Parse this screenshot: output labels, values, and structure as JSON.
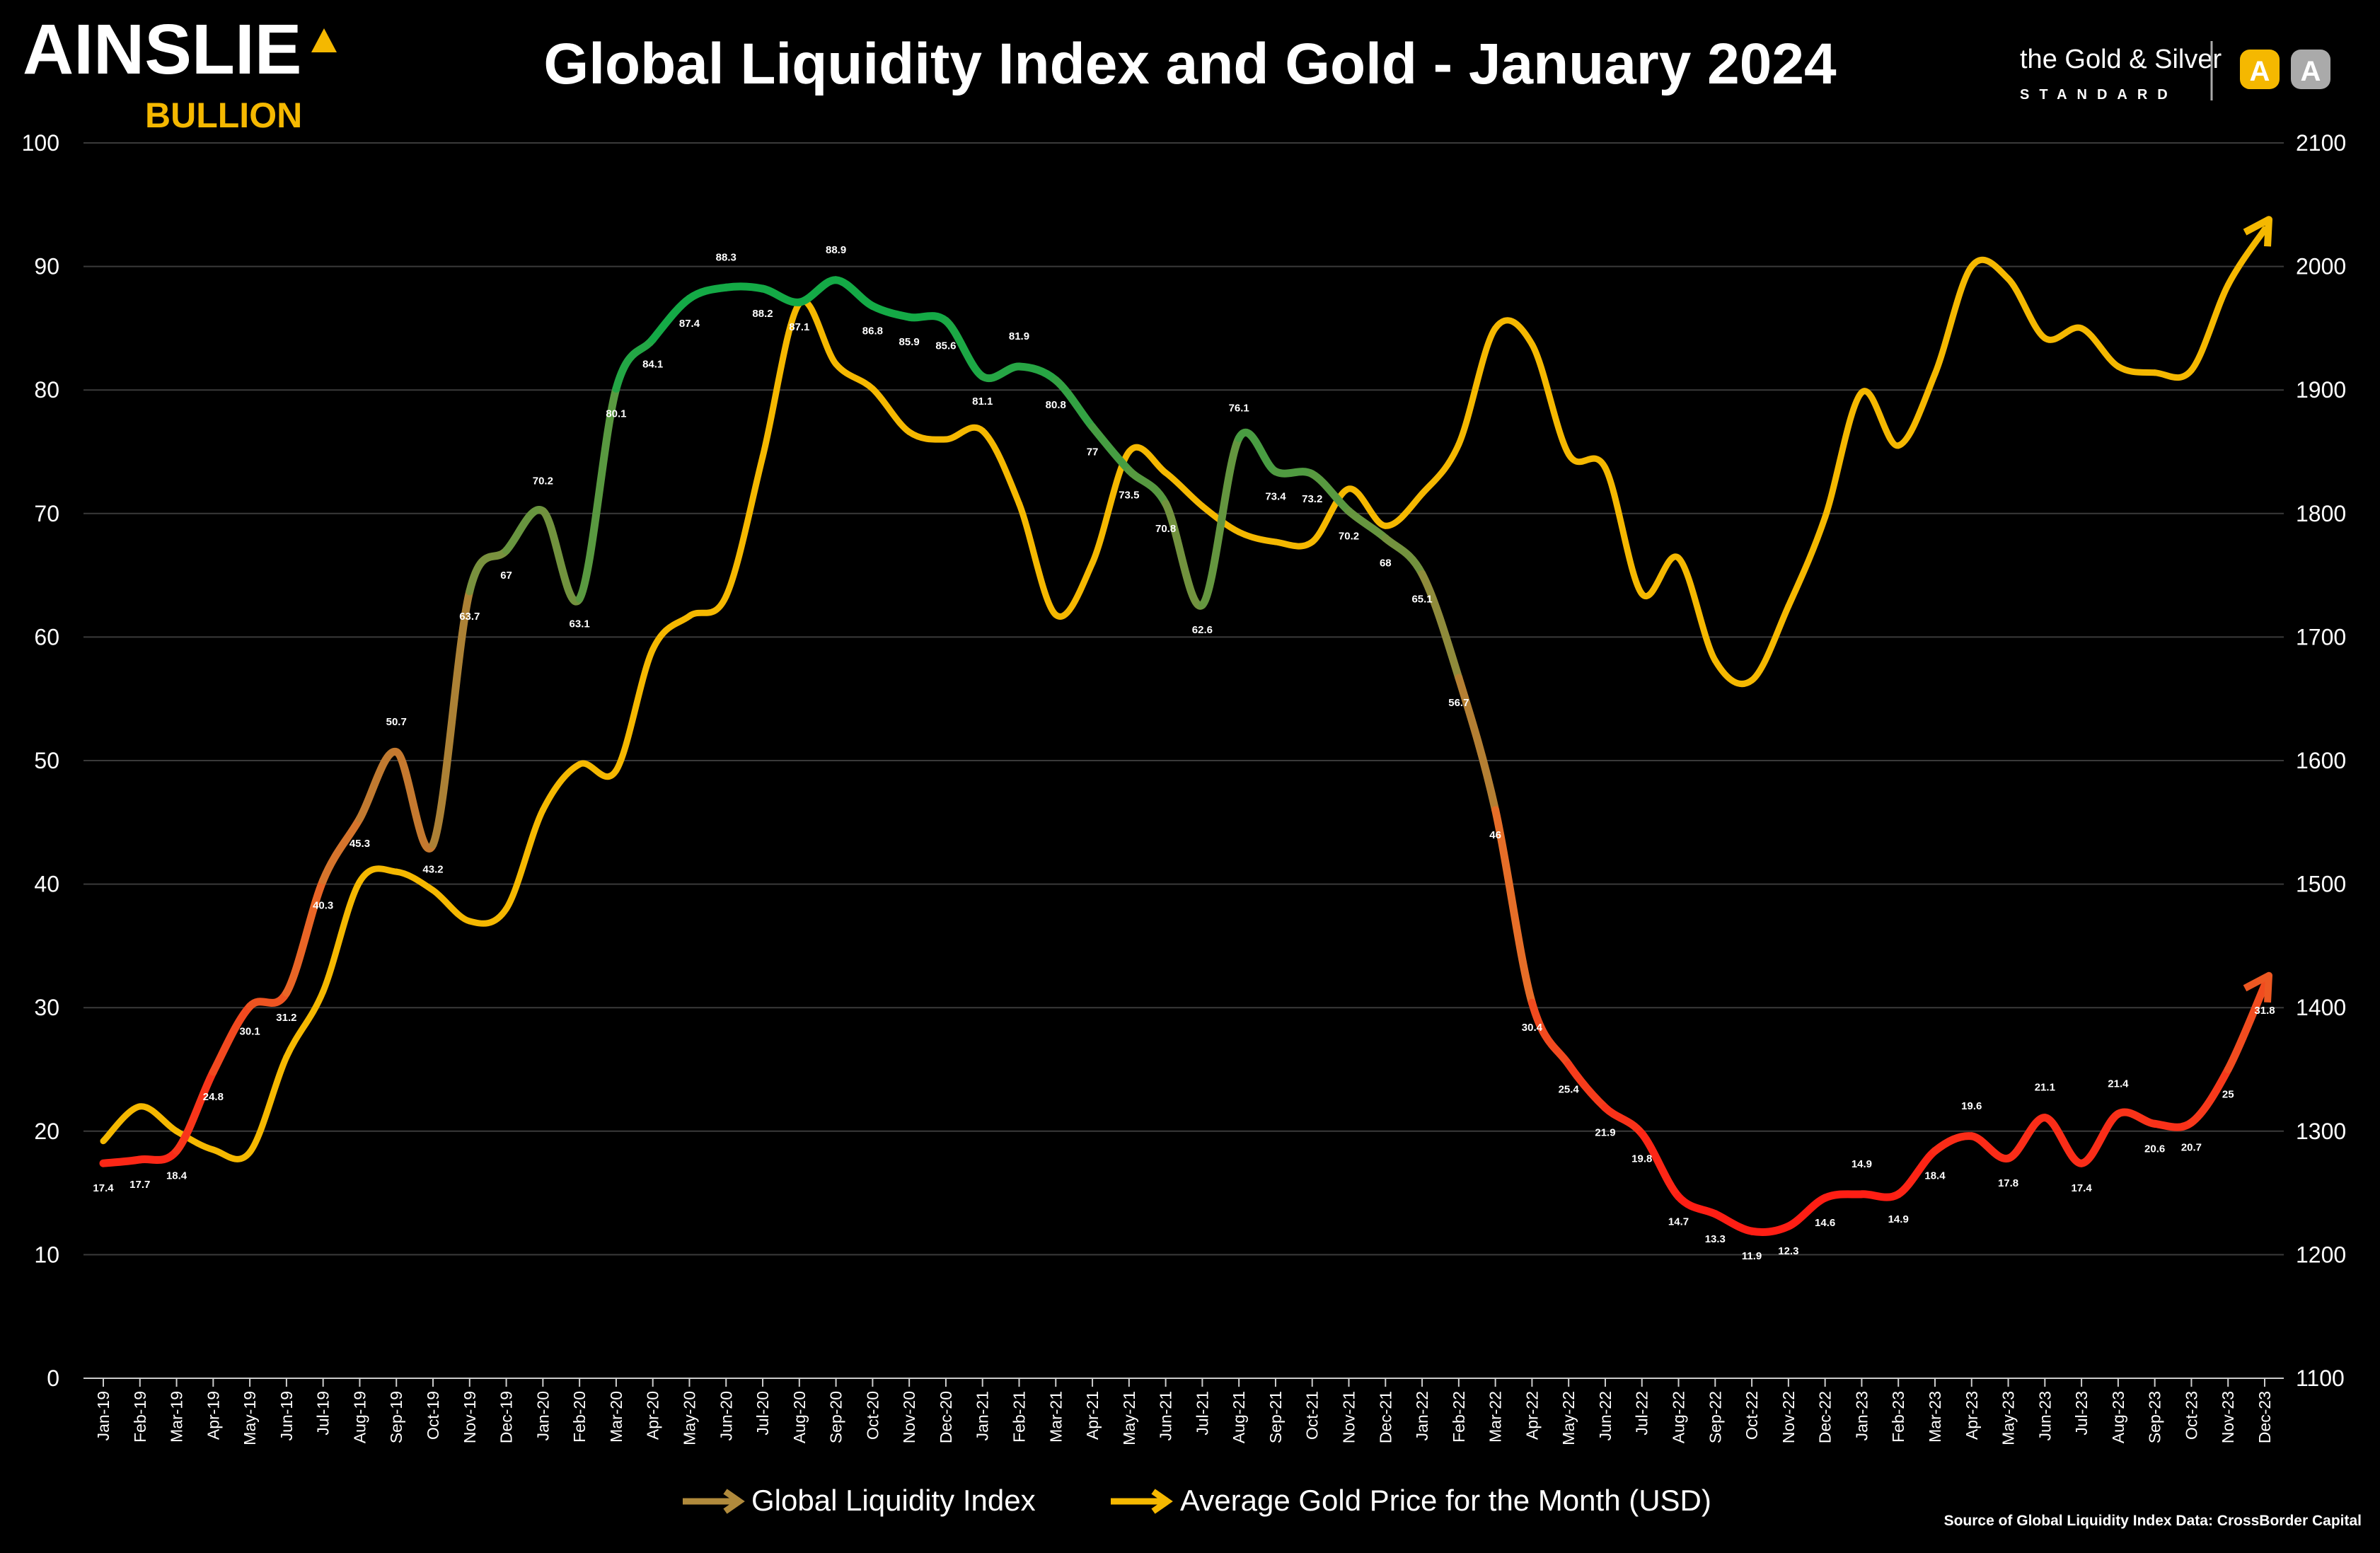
{
  "header": {
    "brand_main": "AINSLIE",
    "brand_sub": "BULLION",
    "partner_line1": "the Gold & Silver",
    "partner_line2": "STANDARD",
    "au_badge": "A",
    "ag_badge": "A"
  },
  "chart_data": {
    "type": "line",
    "title": "Global Liquidity Index and Gold - January 2024",
    "x": [
      "Jan-19",
      "Feb-19",
      "Mar-19",
      "Apr-19",
      "May-19",
      "Jun-19",
      "Jul-19",
      "Aug-19",
      "Sep-19",
      "Oct-19",
      "Nov-19",
      "Dec-19",
      "Jan-20",
      "Feb-20",
      "Mar-20",
      "Apr-20",
      "May-20",
      "Jun-20",
      "Jul-20",
      "Aug-20",
      "Sep-20",
      "Oct-20",
      "Nov-20",
      "Dec-20",
      "Jan-21",
      "Feb-21",
      "Mar-21",
      "Apr-21",
      "May-21",
      "Jun-21",
      "Jul-21",
      "Aug-21",
      "Sep-21",
      "Oct-21",
      "Nov-21",
      "Dec-21",
      "Jan-22",
      "Feb-22",
      "Mar-22",
      "Apr-22",
      "May-22",
      "Jun-22",
      "Jul-22",
      "Aug-22",
      "Sep-22",
      "Oct-22",
      "Nov-22",
      "Dec-22",
      "Jan-23",
      "Feb-23",
      "Mar-23",
      "Apr-23",
      "May-23",
      "Jun-23",
      "Jul-23",
      "Aug-23",
      "Sep-23",
      "Oct-23",
      "Nov-23",
      "Dec-23"
    ],
    "series": [
      {
        "name": "Global Liquidity Index",
        "axis": "left",
        "labels": true,
        "values": [
          17.4,
          17.7,
          18.4,
          24.8,
          30.1,
          31.2,
          40.3,
          45.3,
          50.7,
          43.2,
          63.7,
          67,
          70.2,
          63.1,
          80.1,
          84.1,
          87.4,
          88.3,
          88.2,
          87.1,
          88.9,
          86.8,
          85.9,
          85.6,
          81.1,
          81.9,
          80.8,
          77,
          73.5,
          70.8,
          62.6,
          76.1,
          73.4,
          73.2,
          70.2,
          68,
          65.1,
          56.7,
          46,
          30.4,
          25.4,
          21.9,
          19.8,
          14.7,
          13.3,
          11.9,
          12.3,
          14.6,
          14.9,
          14.9,
          18.4,
          19.6,
          17.8,
          21.1,
          17.4,
          21.4,
          20.6,
          20.7,
          25,
          31.8
        ]
      },
      {
        "name": "Average Gold Price for the Month (USD)",
        "axis": "right",
        "color": "#f5b800",
        "values": [
          1292,
          1320,
          1300,
          1285,
          1283,
          1360,
          1413,
          1502,
          1510,
          1495,
          1470,
          1480,
          1560,
          1597,
          1592,
          1690,
          1717,
          1733,
          1846,
          1970,
          1921,
          1901,
          1866,
          1860,
          1867,
          1808,
          1718,
          1760,
          1850,
          1833,
          1806,
          1785,
          1777,
          1777,
          1820,
          1790,
          1816,
          1856,
          1950,
          1937,
          1848,
          1837,
          1735,
          1764,
          1681,
          1665,
          1725,
          1797,
          1898,
          1855,
          1913,
          2000,
          1990,
          1942,
          1950,
          1919,
          1914,
          1916,
          1985,
          2030
        ]
      }
    ],
    "ylim_left": [
      0,
      100
    ],
    "yticks_left": [
      0,
      10,
      20,
      30,
      40,
      50,
      60,
      70,
      80,
      90,
      100
    ],
    "ylim_right": [
      1100,
      2100
    ],
    "yticks_right": [
      1100,
      1200,
      1300,
      1400,
      1500,
      1600,
      1700,
      1800,
      1900,
      2000,
      2100
    ],
    "grid": true,
    "legend": "bottom-center",
    "source": "Source of Global Liquidity Index Data: CrossBorder Capital"
  }
}
